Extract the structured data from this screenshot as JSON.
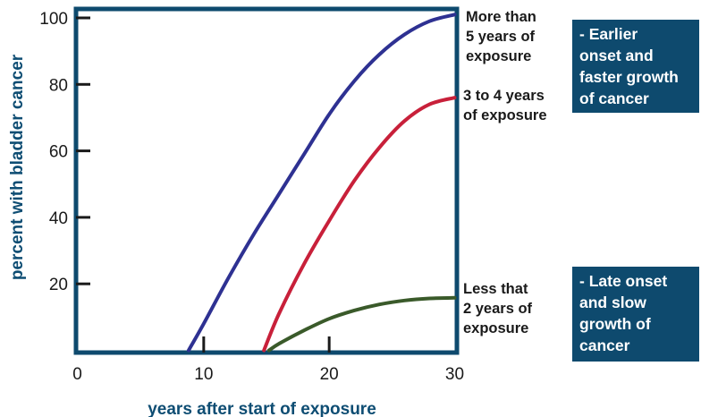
{
  "chart_data": {
    "type": "line",
    "title": "",
    "xlabel": "years after start of exposure",
    "ylabel": "percent with bladder cancer",
    "xlim": [
      0,
      30
    ],
    "ylim": [
      0,
      100
    ],
    "x_ticks": [
      0,
      10,
      20,
      30
    ],
    "y_ticks": [
      20,
      40,
      60,
      80,
      100
    ],
    "grid": false,
    "colors": {
      "frame": "#0e4a6e",
      "axis_title": "#0e4d73"
    },
    "series": [
      {
        "name": "More than\n5 years of\nexposure",
        "color": "#2e3192",
        "x": [
          8.8,
          10,
          12,
          14,
          16,
          18,
          20,
          22,
          24,
          26,
          28,
          30
        ],
        "y": [
          0,
          8,
          22,
          35,
          47,
          59,
          71,
          81,
          89,
          95,
          99,
          101
        ]
      },
      {
        "name": "3 to 4 years\nof exposure",
        "color": "#c8203a",
        "x": [
          14.8,
          16,
          18,
          20,
          22,
          24,
          26,
          28,
          30
        ],
        "y": [
          0,
          11,
          26,
          39,
          51,
          61,
          69,
          74,
          76
        ]
      },
      {
        "name": "Less that\n2 years of\nexposure",
        "color": "#3a5a2a",
        "x": [
          15.2,
          16,
          18,
          20,
          22,
          24,
          26,
          28,
          30
        ],
        "y": [
          0,
          2,
          6,
          9.5,
          12,
          13.8,
          15,
          15.6,
          15.8
        ]
      }
    ],
    "annotations": [
      "- Earlier\nonset and\nfaster growth\nof cancer",
      "- Late onset\nand slow\ngrowth of\ncancer"
    ]
  }
}
